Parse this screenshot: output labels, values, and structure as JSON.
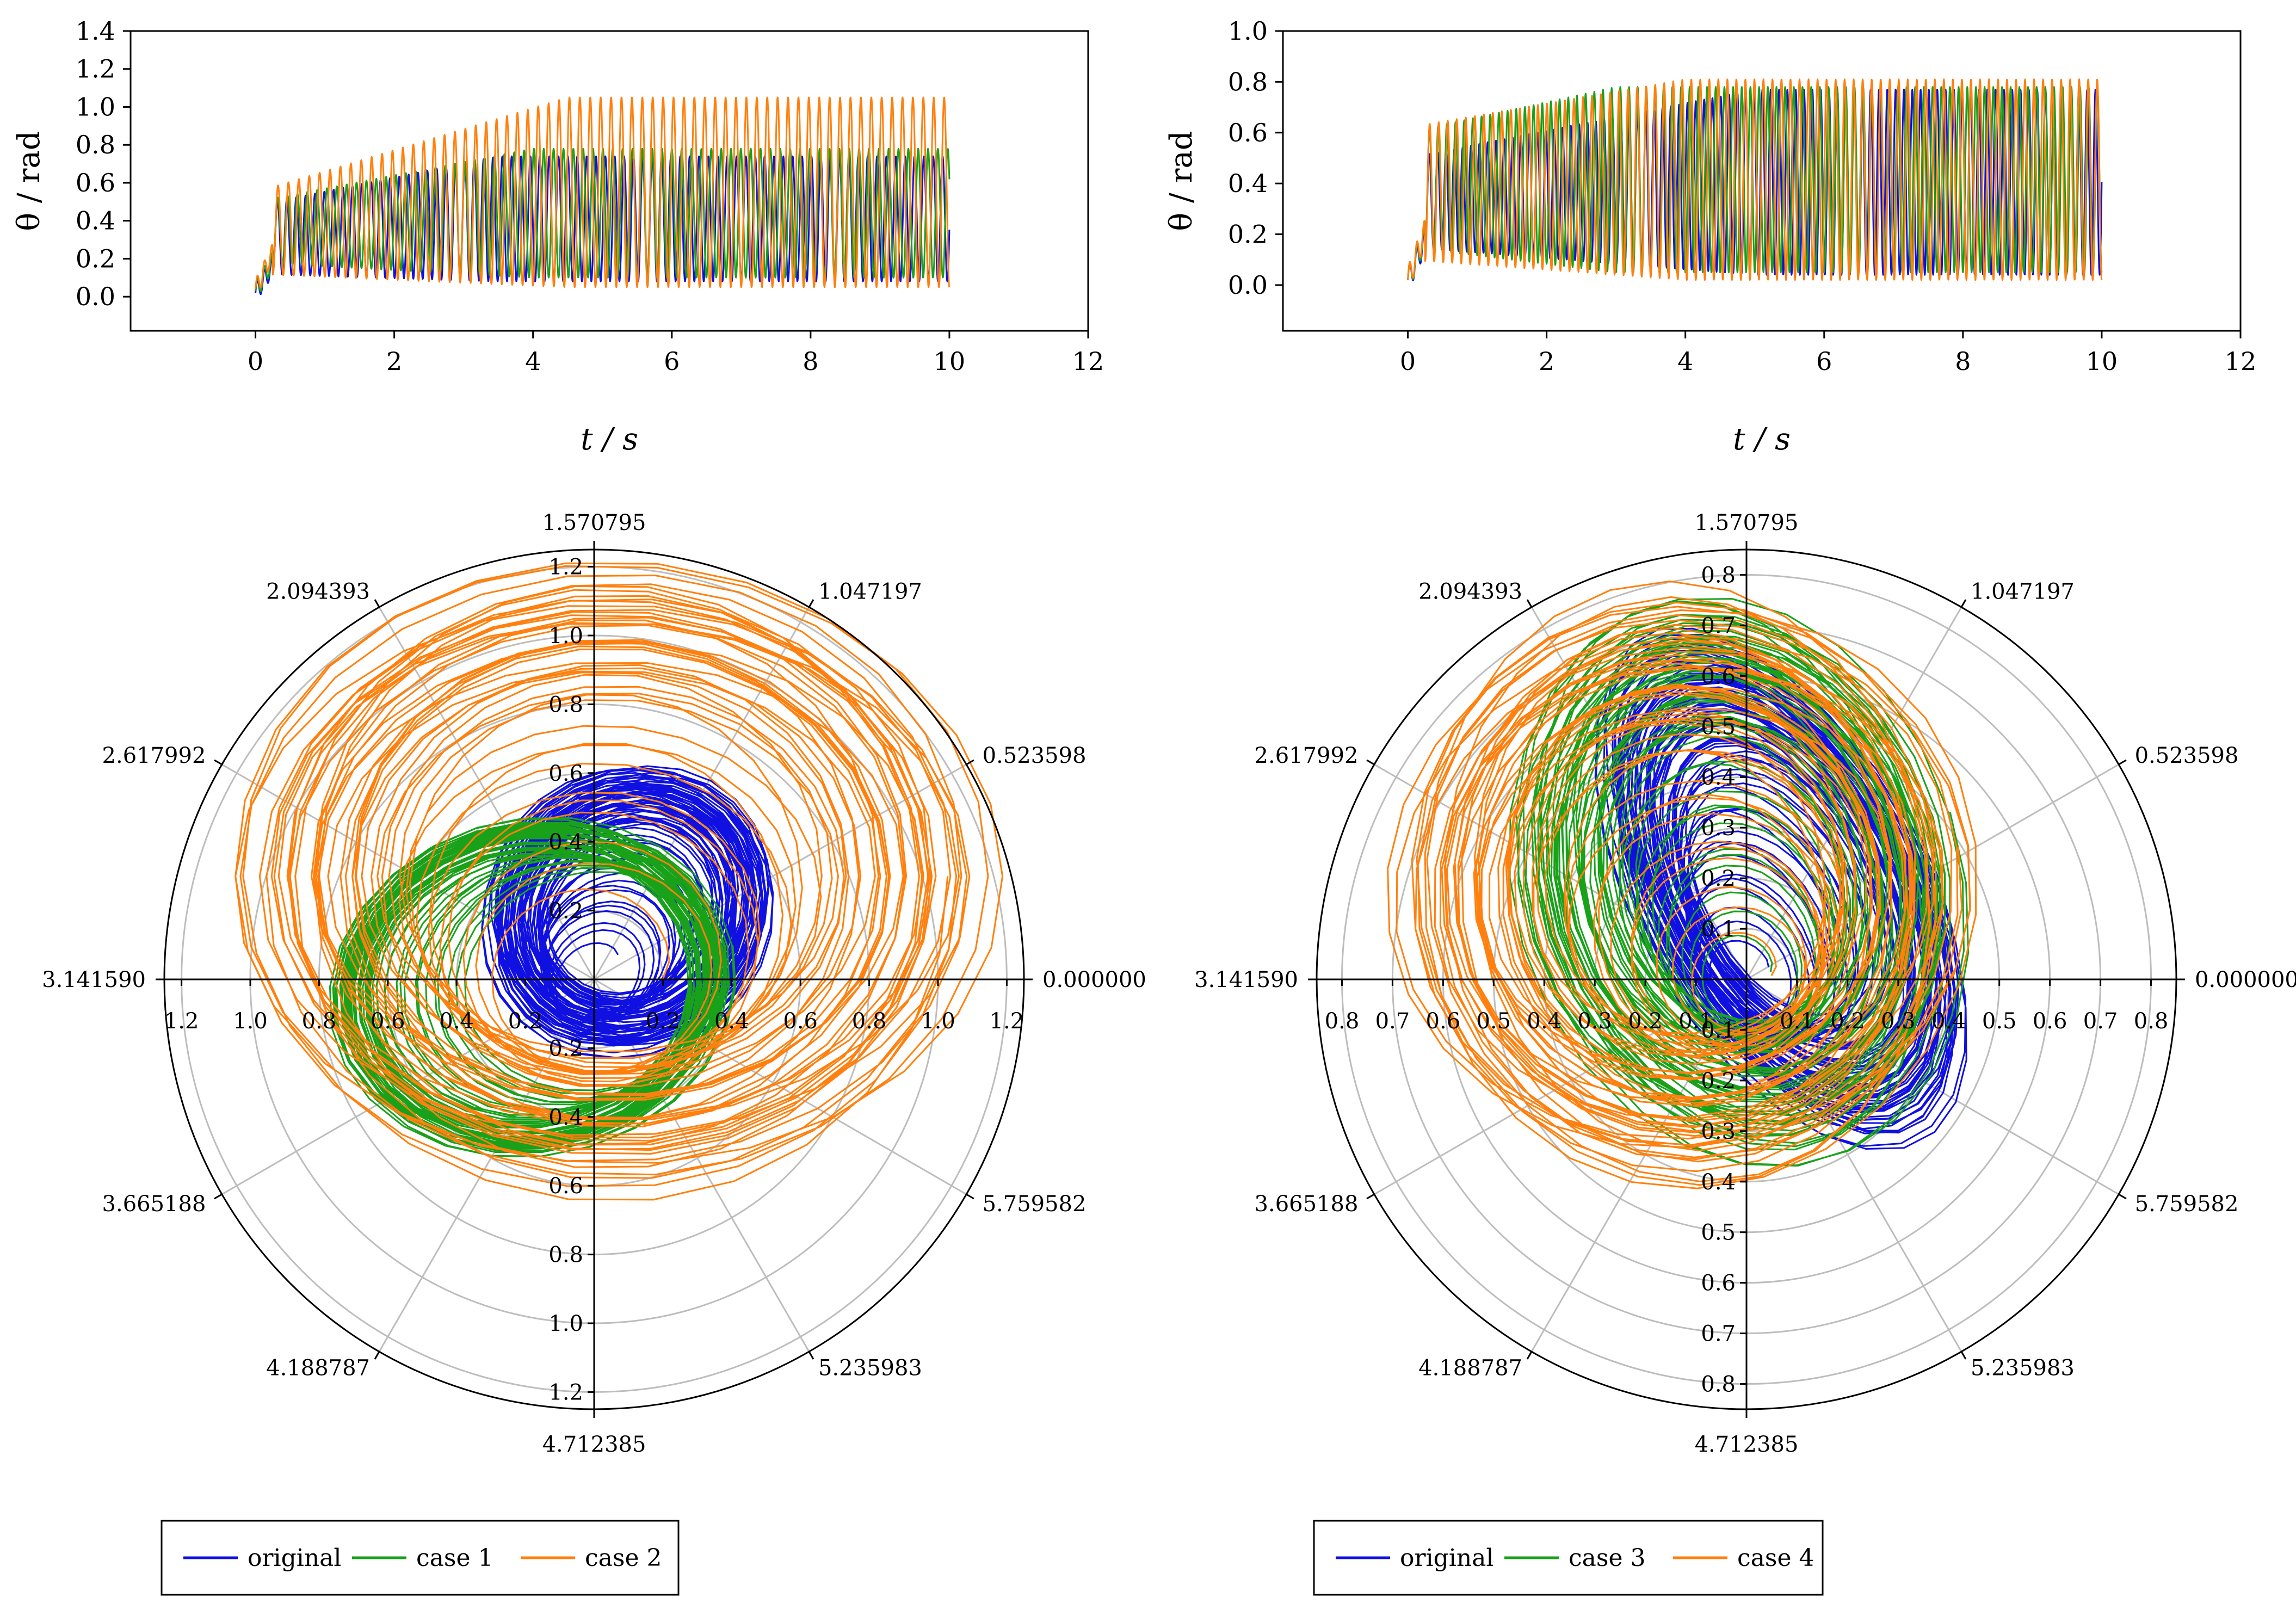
{
  "colors": {
    "original": "#1010e0",
    "case1": "#1aa11a",
    "case2": "#ff800e",
    "grid": "#bdbdbd",
    "axis": "#000000"
  },
  "chart_data": [
    {
      "id": "ts-left",
      "type": "line",
      "xlabel": "t / s",
      "ylabel": "θ / rad",
      "xlim": [
        -1.8,
        12
      ],
      "ylim": [
        -0.18,
        1.4
      ],
      "xticks": [
        0,
        2,
        4,
        6,
        8,
        10,
        12
      ],
      "yticks": [
        0.0,
        0.2,
        0.4,
        0.6,
        0.8,
        1.0,
        1.2,
        1.4
      ],
      "t_range": [
        0,
        10
      ],
      "series": [
        {
          "name": "original",
          "color": "#1010e0",
          "start": 0.02,
          "kick": 0.4,
          "rise_time": 3.5,
          "baseline_start": 0.12,
          "baseline_end": 0.08,
          "peak_start": 0.48,
          "peak_end": 0.74,
          "period": 0.135
        },
        {
          "name": "case 1",
          "color": "#1aa11a",
          "start": 0.03,
          "kick": 0.45,
          "rise_time": 4.0,
          "baseline_start": 0.18,
          "baseline_end": 0.1,
          "peak_start": 0.5,
          "peak_end": 0.78,
          "period": 0.142
        },
        {
          "name": "case 2",
          "color": "#ff800e",
          "start": 0.04,
          "kick": 0.55,
          "rise_time": 4.5,
          "baseline_start": 0.12,
          "baseline_end": 0.05,
          "peak_start": 0.55,
          "peak_end": 1.05,
          "period": 0.15
        }
      ]
    },
    {
      "id": "ts-right",
      "type": "line",
      "xlabel": "t / s",
      "ylabel": "θ / rad",
      "xlim": [
        -1.8,
        12
      ],
      "ylim": [
        -0.18,
        1.0
      ],
      "xticks": [
        0,
        2,
        4,
        6,
        8,
        10,
        12
      ],
      "yticks": [
        0.0,
        0.2,
        0.4,
        0.6,
        0.8,
        1.0
      ],
      "t_range": [
        0,
        10
      ],
      "series": [
        {
          "name": "original",
          "color": "#1010e0",
          "start": 0.02,
          "kick": 0.45,
          "rise_time": 5.0,
          "baseline_start": 0.15,
          "baseline_end": 0.04,
          "peak_start": 0.5,
          "peak_end": 0.77,
          "period": 0.12
        },
        {
          "name": "case 3",
          "color": "#1aa11a",
          "start": 0.02,
          "kick": 0.5,
          "rise_time": 3.0,
          "baseline_start": 0.15,
          "baseline_end": 0.05,
          "peak_start": 0.6,
          "peak_end": 0.78,
          "period": 0.125
        },
        {
          "name": "case 4",
          "color": "#ff800e",
          "start": 0.02,
          "kick": 0.55,
          "rise_time": 4.0,
          "baseline_start": 0.1,
          "baseline_end": 0.02,
          "peak_start": 0.62,
          "peak_end": 0.81,
          "period": 0.13
        }
      ]
    },
    {
      "id": "polar-left",
      "type": "polar",
      "rmax": 1.25,
      "rings": [
        0.2,
        0.4,
        0.6,
        0.8,
        1.0,
        1.2
      ],
      "angle_labels": [
        "0.000000",
        "0.523598",
        "1.047197",
        "1.570795",
        "2.094393",
        "2.617992",
        "3.141590",
        "3.665188",
        "4.188787",
        "4.712385",
        "5.235983",
        "5.759582"
      ],
      "horizontal_tick_labels": [
        "1.2",
        "1.0",
        "0.8",
        "0.6",
        "0.4",
        "0.2",
        "0.2",
        "0.4",
        "0.6",
        "0.8",
        "1.0",
        "1.2"
      ],
      "vertical_tick_labels": [
        "1.2",
        "1.0",
        "0.8",
        "0.6",
        "0.4",
        "0.2",
        "0.2",
        "0.4",
        "0.6",
        "0.8",
        "1.0",
        "1.2"
      ],
      "series": [
        {
          "name": "original",
          "color": "#1010e0",
          "center": [
            0.1,
            0.2
          ],
          "rx": [
            0.1,
            0.46
          ],
          "ry": [
            0.08,
            0.42
          ],
          "tilt": 0.8,
          "turns": 70
        },
        {
          "name": "case 1",
          "color": "#1aa11a",
          "center": [
            -0.18,
            -0.02
          ],
          "rx": [
            0.35,
            0.6
          ],
          "ry": [
            0.3,
            0.5
          ],
          "tilt": 0.2,
          "turns": 55
        },
        {
          "name": "case 2",
          "color": "#ff800e",
          "center": [
            0.05,
            0.3
          ],
          "rx": [
            0.2,
            1.15
          ],
          "ry": [
            0.2,
            0.95
          ],
          "tilt": 0.0,
          "turns": 45
        }
      ],
      "legend": [
        "original",
        "case 1",
        "case 2"
      ]
    },
    {
      "id": "polar-right",
      "type": "polar",
      "rmax": 0.85,
      "rings": [
        0.1,
        0.2,
        0.3,
        0.4,
        0.5,
        0.6,
        0.7,
        0.8
      ],
      "angle_labels": [
        "0.000000",
        "0.523598",
        "1.047197",
        "1.570795",
        "2.094393",
        "2.617992",
        "3.141590",
        "3.665188",
        "4.188787",
        "4.712385",
        "5.235983",
        "5.759582"
      ],
      "horizontal_tick_labels": [
        "0.8",
        "0.7",
        "0.6",
        "0.5",
        "0.4",
        "0.3",
        "0.2",
        "0.1",
        "0.1",
        "0.2",
        "0.3",
        "0.4",
        "0.5",
        "0.6",
        "0.7",
        "0.8"
      ],
      "vertical_tick_labels": [
        "0.8",
        "0.7",
        "0.6",
        "0.5",
        "0.4",
        "0.3",
        "0.2",
        "0.1",
        "0.1",
        "0.2",
        "0.3",
        "0.4",
        "0.5",
        "0.6",
        "0.7",
        "0.8"
      ],
      "series": [
        {
          "name": "original",
          "color": "#1010e0",
          "center": [
            0.07,
            0.18
          ],
          "rx": [
            0.05,
            0.3
          ],
          "ry": [
            0.05,
            0.58
          ],
          "tilt": 0.5,
          "turns": 70
        },
        {
          "name": "case 3",
          "color": "#1aa11a",
          "center": [
            -0.02,
            0.2
          ],
          "rx": [
            0.05,
            0.45
          ],
          "ry": [
            0.05,
            0.6
          ],
          "tilt": 0.3,
          "turns": 55
        },
        {
          "name": "case 4",
          "color": "#ff800e",
          "center": [
            -0.12,
            0.18
          ],
          "rx": [
            0.05,
            0.6
          ],
          "ry": [
            0.05,
            0.62
          ],
          "tilt": 0.15,
          "turns": 50
        }
      ],
      "legend": [
        "original",
        "case 3",
        "case 4"
      ]
    }
  ]
}
